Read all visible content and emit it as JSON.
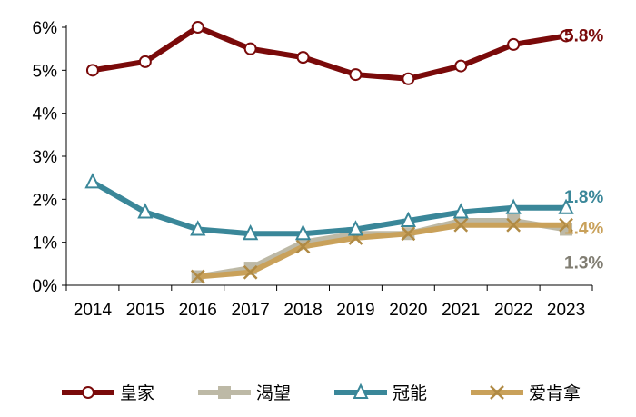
{
  "chart_data": {
    "type": "line",
    "categories": [
      "2014",
      "2015",
      "2016",
      "2017",
      "2018",
      "2019",
      "2020",
      "2021",
      "2022",
      "2023"
    ],
    "ylim": [
      0,
      6
    ],
    "yticks": [
      "0%",
      "1%",
      "2%",
      "3%",
      "4%",
      "5%",
      "6%"
    ],
    "grid": false,
    "legend": "bottom",
    "series": [
      {
        "name": "皇家",
        "color": "#7a0a0a",
        "marker": "circle",
        "values": [
          5.0,
          5.2,
          6.0,
          5.5,
          5.3,
          4.9,
          4.8,
          5.1,
          5.6,
          5.8
        ],
        "end_label": "5.8%",
        "label_color": "#7a0a0a"
      },
      {
        "name": "渴望",
        "color": "#bdb9a6",
        "marker": "square",
        "values": [
          null,
          null,
          0.2,
          0.4,
          1.0,
          1.2,
          1.2,
          1.5,
          1.5,
          1.3
        ],
        "end_label": "1.3%",
        "label_color": "#807d72"
      },
      {
        "name": "冠能",
        "color": "#3a8799",
        "marker": "triangle",
        "values": [
          2.4,
          1.7,
          1.3,
          1.2,
          1.2,
          1.3,
          1.5,
          1.7,
          1.8,
          1.8
        ],
        "end_label": "1.8%",
        "label_color": "#3a8799"
      },
      {
        "name": "爱肯拿",
        "color": "#c9a15a",
        "marker": "x",
        "values": [
          null,
          null,
          0.2,
          0.3,
          0.9,
          1.1,
          1.2,
          1.4,
          1.4,
          1.4
        ],
        "end_label": "1.4%",
        "label_color": "#c9a15a"
      }
    ]
  }
}
